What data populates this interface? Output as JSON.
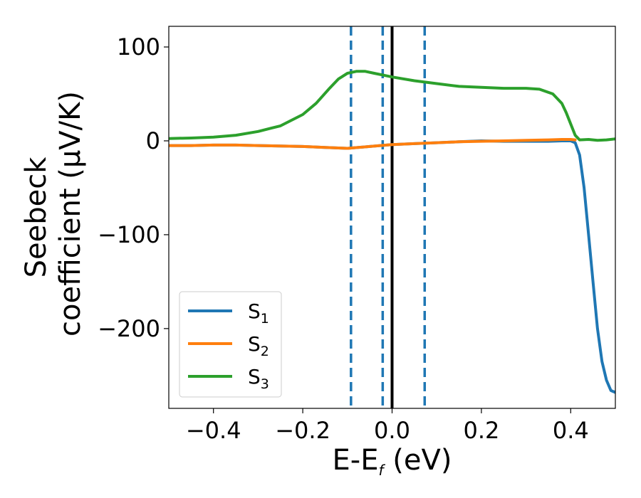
{
  "chart_data": {
    "type": "line",
    "xlabel": {
      "main": "E-E",
      "sub": "f",
      "unit": " (eV)"
    },
    "ylabel": {
      "line1": "Seebeck",
      "line2": "coefficient  (μV/K)"
    },
    "xlim": [
      -0.5,
      0.5
    ],
    "ylim": [
      -285,
      122
    ],
    "xticks": [
      -0.4,
      -0.2,
      0.0,
      0.2,
      0.4
    ],
    "xtick_labels": [
      "−0.4",
      "−0.2",
      "0.0",
      "0.2",
      "0.4"
    ],
    "yticks": [
      100,
      0,
      -100,
      -200
    ],
    "ytick_labels": [
      "100",
      "0",
      "−100",
      "−200"
    ],
    "grid": false,
    "legend_position": "lower-left",
    "vlines": [
      {
        "x": -0.092,
        "style": "dashed",
        "color": "#1f77b4"
      },
      {
        "x": -0.021,
        "style": "dashed",
        "color": "#1f77b4"
      },
      {
        "x": 0.0,
        "style": "solid",
        "color": "#000000"
      },
      {
        "x": 0.073,
        "style": "dashed",
        "color": "#1f77b4"
      }
    ],
    "series": [
      {
        "name": "S",
        "sub": "1",
        "color": "#1f77b4",
        "x": [
          -0.5,
          -0.45,
          -0.4,
          -0.35,
          -0.3,
          -0.25,
          -0.2,
          -0.15,
          -0.1,
          -0.05,
          0.0,
          0.05,
          0.1,
          0.15,
          0.2,
          0.25,
          0.3,
          0.35,
          0.38,
          0.4,
          0.41,
          0.42,
          0.43,
          0.44,
          0.45,
          0.46,
          0.47,
          0.48,
          0.49,
          0.5
        ],
        "y": [
          -5,
          -5,
          -4.5,
          -4.5,
          -5,
          -5.5,
          -6,
          -7,
          -8,
          -6,
          -4,
          -3,
          -2,
          -1,
          0,
          -0.5,
          -0.5,
          -0.5,
          0,
          0,
          -2,
          -15,
          -50,
          -100,
          -150,
          -200,
          -235,
          -255,
          -266,
          -268
        ]
      },
      {
        "name": "S",
        "sub": "2",
        "color": "#ff7f0e",
        "x": [
          -0.5,
          -0.45,
          -0.4,
          -0.35,
          -0.3,
          -0.25,
          -0.2,
          -0.15,
          -0.1,
          -0.05,
          0.0,
          0.05,
          0.1,
          0.15,
          0.2,
          0.25,
          0.3,
          0.35,
          0.38,
          0.4,
          0.41
        ],
        "y": [
          -5,
          -5,
          -4.5,
          -4.5,
          -5,
          -5.5,
          -6,
          -7,
          -8,
          -6,
          -4,
          -3,
          -2,
          -1,
          -0.5,
          0,
          0.5,
          1,
          1.5,
          1.5,
          1
        ]
      },
      {
        "name": "S",
        "sub": "3",
        "color": "#2ca02c",
        "x": [
          -0.5,
          -0.45,
          -0.4,
          -0.35,
          -0.3,
          -0.25,
          -0.2,
          -0.17,
          -0.14,
          -0.12,
          -0.1,
          -0.08,
          -0.06,
          -0.04,
          -0.02,
          0.0,
          0.05,
          0.1,
          0.15,
          0.2,
          0.25,
          0.3,
          0.33,
          0.36,
          0.38,
          0.39,
          0.4,
          0.41,
          0.42,
          0.44,
          0.46,
          0.48,
          0.5
        ],
        "y": [
          2.5,
          3,
          4,
          6,
          10,
          16,
          28,
          40,
          56,
          66,
          72,
          74,
          74,
          72,
          70,
          68,
          64,
          61,
          58,
          57,
          56,
          56,
          55,
          50,
          40,
          30,
          18,
          6,
          1,
          1.5,
          0.5,
          1,
          2
        ]
      }
    ]
  }
}
